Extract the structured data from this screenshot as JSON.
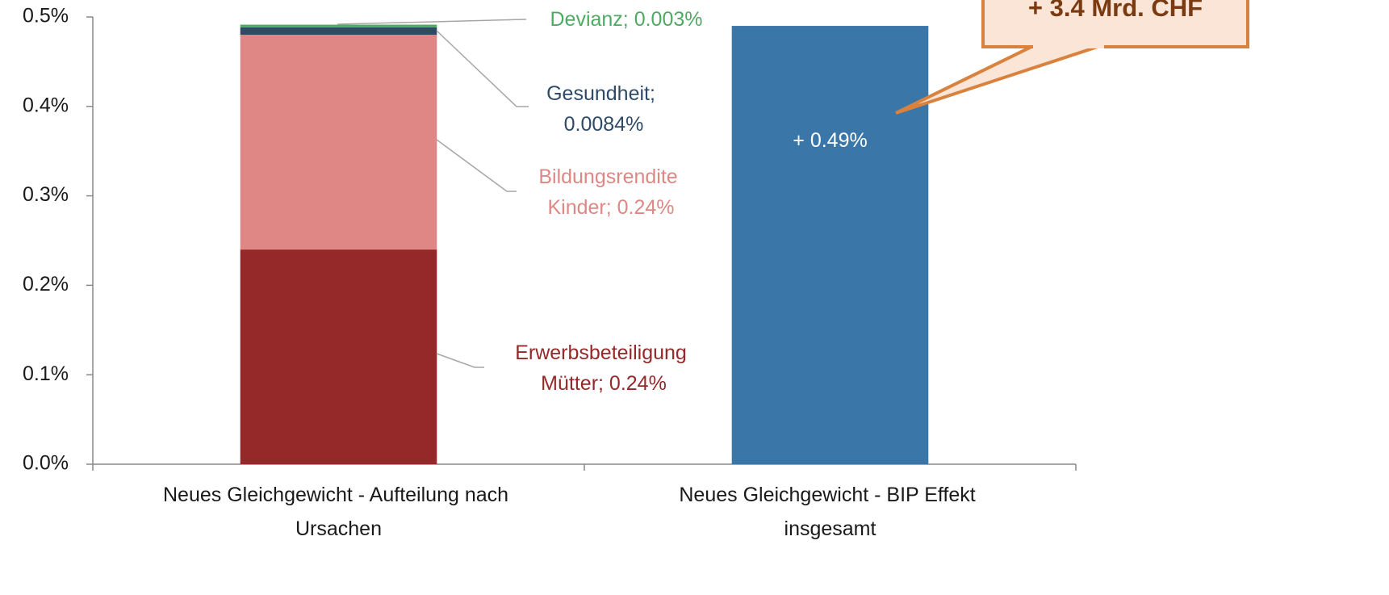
{
  "chart_data": {
    "type": "stacked_bar",
    "categories": [
      "Neues Gleichgewicht - Aufteilung nach Ursachen",
      "Neues Gleichgewicht - BIP Effekt insgesamt"
    ],
    "series": [
      {
        "color": "#952829",
        "values": [
          0.24,
          null
        ],
        "value_labels": [
          "Erwerbsbeteiligung Mütter; 0.24%",
          null
        ]
      },
      {
        "color": "#de8784",
        "values": [
          0.24,
          null
        ],
        "value_labels": [
          "Bildungsrendite Kinder; 0.24%",
          null
        ]
      },
      {
        "color": "#2e4a66",
        "values": [
          0.0084,
          null
        ],
        "value_labels": [
          "Gesundheit; 0.0084%",
          null
        ]
      },
      {
        "color": "#4faa63",
        "values": [
          0.003,
          null
        ],
        "value_labels": [
          "Devianz; 0.003%",
          null
        ]
      },
      {
        "color": "#3a76a8",
        "values": [
          null,
          0.49
        ],
        "value_labels": [
          null,
          "+ 0.49%"
        ]
      }
    ],
    "ylim": [
      0,
      0.5
    ],
    "yticks": [
      {
        "value": 0,
        "label": "0.0%"
      },
      {
        "value": 0.1,
        "label": "0.1%"
      },
      {
        "value": 0.2,
        "label": "0.2%"
      },
      {
        "value": 0.3,
        "label": "0.3%"
      },
      {
        "value": 0.4,
        "label": "0.4%"
      },
      {
        "value": 0.5,
        "label": "0.5%"
      }
    ],
    "annotation": "+ 3.4 Mrd. CHF"
  }
}
